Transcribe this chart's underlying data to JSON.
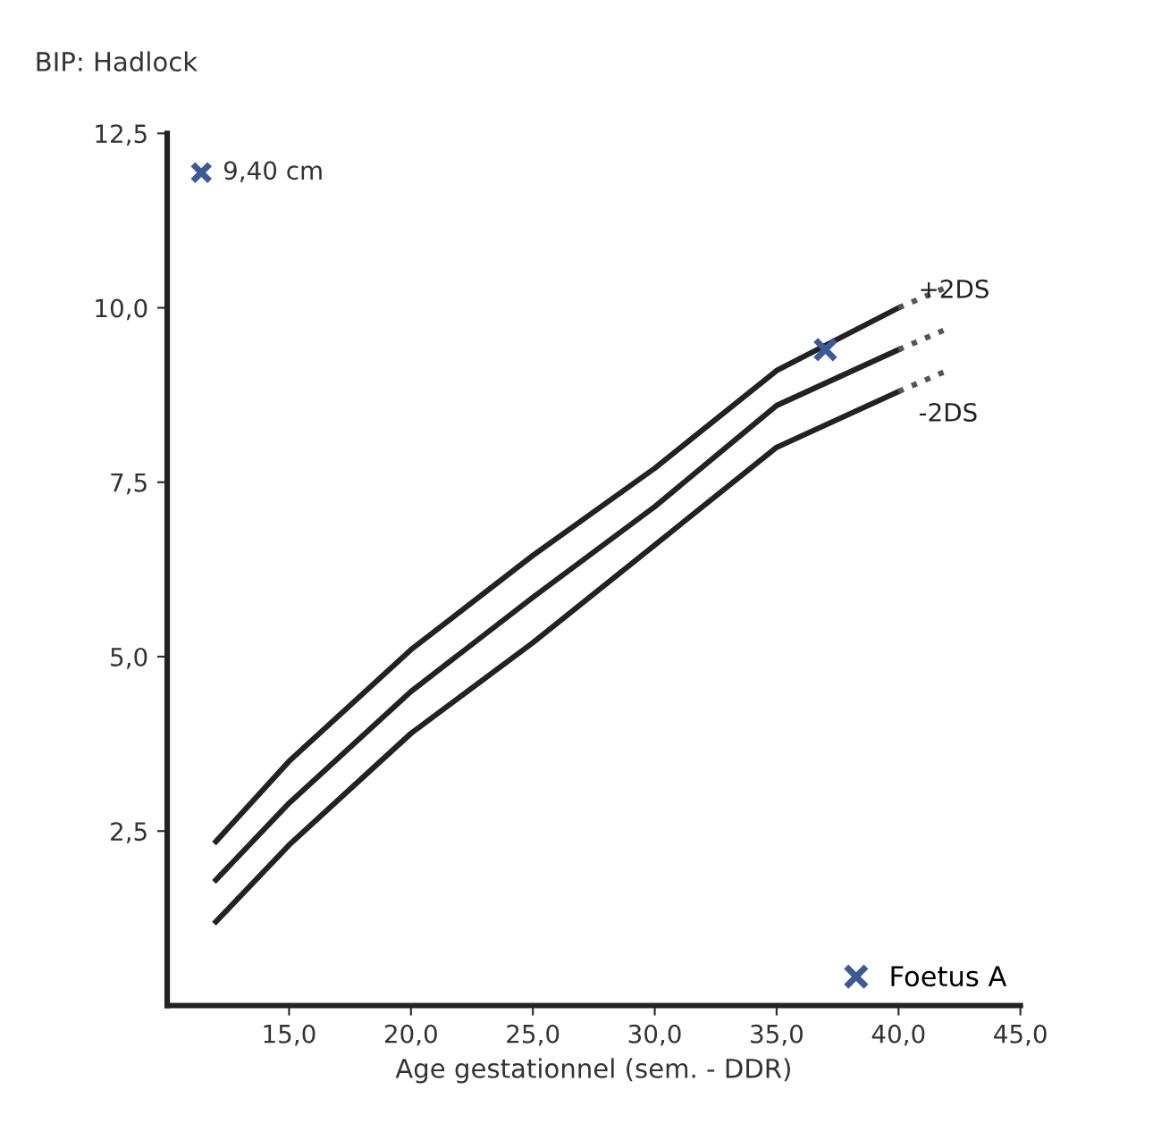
{
  "chart_data": {
    "type": "line",
    "title": "BIP: Hadlock",
    "xlabel": "Age gestationnel (sem. - DDR)",
    "xlim": [
      10,
      45
    ],
    "ylim": [
      0,
      12.5
    ],
    "xticks": [
      {
        "value": 15,
        "label": "15,0"
      },
      {
        "value": 20,
        "label": "20,0"
      },
      {
        "value": 25,
        "label": "25,0"
      },
      {
        "value": 30,
        "label": "30,0"
      },
      {
        "value": 35,
        "label": "35,0"
      },
      {
        "value": 40,
        "label": "40,0"
      },
      {
        "value": 45,
        "label": "45,0"
      }
    ],
    "yticks": [
      {
        "value": 2.5,
        "label": "2,5"
      },
      {
        "value": 5,
        "label": "5,0"
      },
      {
        "value": 7.5,
        "label": "7,5"
      },
      {
        "value": 10,
        "label": "10,0"
      },
      {
        "value": 12.5,
        "label": "12,5"
      }
    ],
    "grid": false,
    "legend": "bottom right",
    "marker": "none",
    "line_style": "solid",
    "series": [
      {
        "name": "+2DS",
        "color": "#222222",
        "x": [
          12,
          15,
          20,
          25,
          30,
          35,
          40
        ],
        "values": [
          2.35,
          3.5,
          5.1,
          6.45,
          7.7,
          9.1,
          10.0
        ]
      },
      {
        "color": "#222222",
        "x": [
          12,
          15,
          20,
          25,
          30,
          35,
          40
        ],
        "values": [
          1.8,
          2.9,
          4.5,
          5.85,
          7.15,
          8.6,
          9.4
        ]
      },
      {
        "name": "-2DS",
        "color": "#222222",
        "x": [
          12,
          15,
          20,
          25,
          30,
          35,
          40
        ],
        "values": [
          1.2,
          2.3,
          3.9,
          5.2,
          6.6,
          8.0,
          8.8
        ]
      },
      {
        "color": "#555555",
        "line_style": "dotted",
        "x": [
          40,
          42
        ],
        "values": [
          10.0,
          10.3
        ]
      },
      {
        "color": "#555555",
        "line_style": "dotted",
        "x": [
          40,
          42
        ],
        "values": [
          9.4,
          9.7
        ]
      },
      {
        "color": "#555555",
        "line_style": "dotted",
        "x": [
          40,
          42
        ],
        "values": [
          8.8,
          9.1
        ]
      },
      {
        "name": "Foetus A",
        "type": "scatter",
        "marker": "cross",
        "color": "#3c5a96",
        "x": [
          37
        ],
        "values": [
          9.4
        ]
      }
    ],
    "annotations": [
      "9,40 cm"
    ]
  }
}
